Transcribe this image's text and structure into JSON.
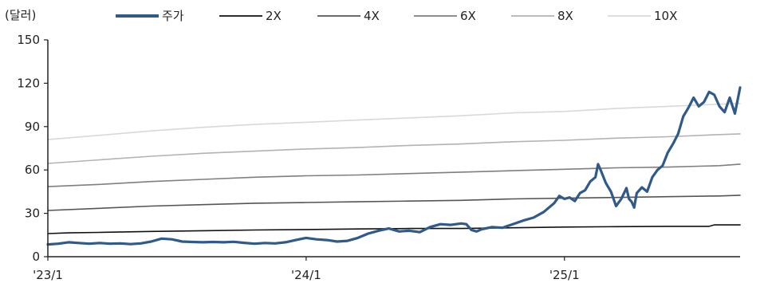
{
  "chart_data": {
    "type": "line",
    "unit_label": "(달러)",
    "x_tick_labels": [
      "'23/1",
      "'24/1",
      "'25/1"
    ],
    "x_ticks": [
      2023.0,
      2024.0,
      2025.0
    ],
    "xlim": [
      2023.0,
      2025.68
    ],
    "ylim": [
      0,
      150
    ],
    "y_ticks": [
      0,
      30,
      60,
      90,
      120,
      150
    ],
    "grid": false,
    "legend_position": "top",
    "series": [
      {
        "name": "주가",
        "color": "#2f5a8a",
        "points": [
          [
            2023.0,
            8.5
          ],
          [
            2023.04,
            9.0
          ],
          [
            2023.08,
            10.0
          ],
          [
            2023.12,
            9.5
          ],
          [
            2023.16,
            9.0
          ],
          [
            2023.2,
            9.5
          ],
          [
            2023.24,
            9.0
          ],
          [
            2023.28,
            9.2
          ],
          [
            2023.32,
            8.7
          ],
          [
            2023.36,
            9.2
          ],
          [
            2023.4,
            10.5
          ],
          [
            2023.44,
            12.5
          ],
          [
            2023.48,
            12.0
          ],
          [
            2023.52,
            10.5
          ],
          [
            2023.56,
            10.2
          ],
          [
            2023.6,
            10.0
          ],
          [
            2023.64,
            10.2
          ],
          [
            2023.68,
            10.0
          ],
          [
            2023.72,
            10.3
          ],
          [
            2023.76,
            9.6
          ],
          [
            2023.8,
            9.0
          ],
          [
            2023.84,
            9.5
          ],
          [
            2023.88,
            9.2
          ],
          [
            2023.92,
            10.0
          ],
          [
            2023.96,
            11.5
          ],
          [
            2024.0,
            13.0
          ],
          [
            2024.04,
            12.0
          ],
          [
            2024.08,
            11.5
          ],
          [
            2024.12,
            10.5
          ],
          [
            2024.16,
            11.0
          ],
          [
            2024.2,
            13.0
          ],
          [
            2024.24,
            16.0
          ],
          [
            2024.28,
            18.0
          ],
          [
            2024.32,
            19.5
          ],
          [
            2024.36,
            17.5
          ],
          [
            2024.4,
            18.0
          ],
          [
            2024.44,
            17.0
          ],
          [
            2024.48,
            20.5
          ],
          [
            2024.52,
            22.5
          ],
          [
            2024.56,
            22.0
          ],
          [
            2024.6,
            23.0
          ],
          [
            2024.62,
            22.5
          ],
          [
            2024.64,
            18.5
          ],
          [
            2024.66,
            17.5
          ],
          [
            2024.68,
            19.0
          ],
          [
            2024.72,
            20.5
          ],
          [
            2024.76,
            20.0
          ],
          [
            2024.8,
            22.5
          ],
          [
            2024.84,
            25.0
          ],
          [
            2024.88,
            27.0
          ],
          [
            2024.92,
            31.0
          ],
          [
            2024.96,
            37.0
          ],
          [
            2024.98,
            42.0
          ],
          [
            2025.0,
            40.0
          ],
          [
            2025.02,
            41.0
          ],
          [
            2025.04,
            38.5
          ],
          [
            2025.06,
            44.0
          ],
          [
            2025.08,
            46.0
          ],
          [
            2025.1,
            52.0
          ],
          [
            2025.12,
            55.0
          ],
          [
            2025.13,
            64.0
          ],
          [
            2025.14,
            60.0
          ],
          [
            2025.16,
            51.0
          ],
          [
            2025.18,
            45.0
          ],
          [
            2025.2,
            35.0
          ],
          [
            2025.22,
            40.0
          ],
          [
            2025.24,
            47.5
          ],
          [
            2025.25,
            40.0
          ],
          [
            2025.26,
            38.0
          ],
          [
            2025.27,
            34.0
          ],
          [
            2025.28,
            44.0
          ],
          [
            2025.3,
            48.0
          ],
          [
            2025.32,
            45.0
          ],
          [
            2025.34,
            55.0
          ],
          [
            2025.36,
            60.0
          ],
          [
            2025.38,
            63.0
          ],
          [
            2025.4,
            72.0
          ],
          [
            2025.42,
            78.0
          ],
          [
            2025.44,
            85.0
          ],
          [
            2025.46,
            97.0
          ],
          [
            2025.48,
            103.0
          ],
          [
            2025.5,
            110.0
          ],
          [
            2025.52,
            104.0
          ],
          [
            2025.54,
            107.0
          ],
          [
            2025.56,
            114.0
          ],
          [
            2025.58,
            112.0
          ],
          [
            2025.6,
            104.0
          ],
          [
            2025.62,
            100.0
          ],
          [
            2025.64,
            110.0
          ],
          [
            2025.66,
            99.0
          ],
          [
            2025.68,
            117.0
          ]
        ]
      },
      {
        "name": "2X",
        "color": "#111111",
        "points": [
          [
            2023.0,
            16.0
          ],
          [
            2023.08,
            16.5
          ],
          [
            2023.2,
            16.8
          ],
          [
            2023.4,
            17.5
          ],
          [
            2023.6,
            18.0
          ],
          [
            2023.8,
            18.5
          ],
          [
            2024.0,
            18.8
          ],
          [
            2024.2,
            19.2
          ],
          [
            2024.4,
            19.5
          ],
          [
            2024.6,
            19.5
          ],
          [
            2024.8,
            20.0
          ],
          [
            2025.0,
            20.5
          ],
          [
            2025.2,
            20.8
          ],
          [
            2025.4,
            21.0
          ],
          [
            2025.56,
            21.0
          ],
          [
            2025.58,
            22.0
          ],
          [
            2025.68,
            22.0
          ]
        ]
      },
      {
        "name": "4X",
        "color": "#555555",
        "points": [
          [
            2023.0,
            32.0
          ],
          [
            2023.2,
            33.5
          ],
          [
            2023.4,
            35.0
          ],
          [
            2023.6,
            36.0
          ],
          [
            2023.8,
            37.0
          ],
          [
            2024.0,
            37.5
          ],
          [
            2024.2,
            38.0
          ],
          [
            2024.4,
            38.5
          ],
          [
            2024.6,
            39.0
          ],
          [
            2024.8,
            40.0
          ],
          [
            2025.0,
            40.5
          ],
          [
            2025.2,
            41.0
          ],
          [
            2025.4,
            41.5
          ],
          [
            2025.6,
            42.0
          ],
          [
            2025.68,
            42.5
          ]
        ]
      },
      {
        "name": "6X",
        "color": "#7f7f7f",
        "points": [
          [
            2023.0,
            48.5
          ],
          [
            2023.2,
            50.0
          ],
          [
            2023.4,
            52.0
          ],
          [
            2023.6,
            53.5
          ],
          [
            2023.8,
            55.0
          ],
          [
            2024.0,
            56.0
          ],
          [
            2024.2,
            56.5
          ],
          [
            2024.4,
            57.5
          ],
          [
            2024.6,
            58.5
          ],
          [
            2024.8,
            59.5
          ],
          [
            2025.0,
            60.5
          ],
          [
            2025.2,
            61.5
          ],
          [
            2025.4,
            62.0
          ],
          [
            2025.6,
            63.0
          ],
          [
            2025.68,
            64.0
          ]
        ]
      },
      {
        "name": "8X",
        "color": "#b3b3b3",
        "points": [
          [
            2023.0,
            64.5
          ],
          [
            2023.2,
            67.0
          ],
          [
            2023.4,
            69.5
          ],
          [
            2023.6,
            71.5
          ],
          [
            2023.8,
            73.0
          ],
          [
            2024.0,
            74.5
          ],
          [
            2024.2,
            75.5
          ],
          [
            2024.4,
            77.0
          ],
          [
            2024.6,
            78.0
          ],
          [
            2024.8,
            79.5
          ],
          [
            2025.0,
            80.5
          ],
          [
            2025.2,
            82.0
          ],
          [
            2025.4,
            83.0
          ],
          [
            2025.6,
            84.5
          ],
          [
            2025.68,
            85.0
          ]
        ]
      },
      {
        "name": "10X",
        "color": "#d9d9d9",
        "points": [
          [
            2023.0,
            81.0
          ],
          [
            2023.2,
            84.0
          ],
          [
            2023.4,
            87.0
          ],
          [
            2023.6,
            89.5
          ],
          [
            2023.8,
            91.5
          ],
          [
            2024.0,
            93.0
          ],
          [
            2024.2,
            94.5
          ],
          [
            2024.4,
            96.0
          ],
          [
            2024.6,
            97.5
          ],
          [
            2024.8,
            99.5
          ],
          [
            2025.0,
            100.5
          ],
          [
            2025.2,
            102.5
          ],
          [
            2025.4,
            104.0
          ],
          [
            2025.6,
            105.5
          ],
          [
            2025.68,
            106.0
          ]
        ]
      }
    ]
  }
}
